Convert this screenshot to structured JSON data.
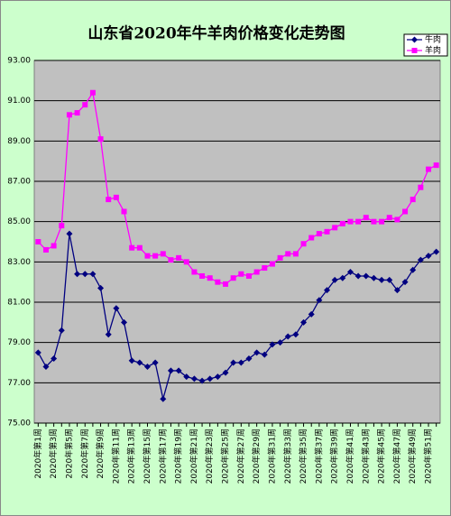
{
  "chart_data": {
    "type": "line",
    "title": "山东省2020年牛羊肉价格变化走势图",
    "categories": [
      "2020年第1周",
      null,
      "2020年第3周",
      null,
      "2020年第5周",
      null,
      "2020年第7周",
      null,
      "2020年第9周",
      null,
      "2020年第11周",
      null,
      "2020年第13周",
      null,
      "2020年第15周",
      null,
      "2020年第17周",
      null,
      "2020年第19周",
      null,
      "2020年第21周",
      null,
      "2020年第23周",
      null,
      "2020年第25周",
      null,
      "2020年第27周",
      null,
      "2020年第29周",
      null,
      "2020年第31周",
      null,
      "2020年第33周",
      null,
      "2020年第35周",
      null,
      "2020年第37周",
      null,
      "2020年第39周",
      null,
      "2020年第41周",
      null,
      "2020年第43周",
      null,
      "2020年第45周",
      null,
      "2020年第47周",
      null,
      "2020年第49周",
      null,
      "2020年第51周",
      null
    ],
    "series": [
      {
        "name": "牛肉",
        "color": "#000080",
        "marker": "diamond",
        "values": [
          78.5,
          77.8,
          78.2,
          79.6,
          84.4,
          82.4,
          82.4,
          82.4,
          81.7,
          79.4,
          80.7,
          80.0,
          78.1,
          78.0,
          77.8,
          78.0,
          76.2,
          77.6,
          77.6,
          77.3,
          77.2,
          77.1,
          77.2,
          77.3,
          77.5,
          78.0,
          78.0,
          78.2,
          78.5,
          78.4,
          78.9,
          79.0,
          79.3,
          79.4,
          80.0,
          80.4,
          81.1,
          81.6,
          82.1,
          82.2,
          82.5,
          82.3,
          82.3,
          82.2,
          82.1,
          82.1,
          81.6,
          82.0,
          82.6,
          83.1,
          83.3,
          83.5
        ]
      },
      {
        "name": "羊肉",
        "color": "#ff00ff",
        "marker": "square",
        "values": [
          84.0,
          83.6,
          83.8,
          84.8,
          90.3,
          90.4,
          90.8,
          91.4,
          89.1,
          86.1,
          86.2,
          85.5,
          83.7,
          83.7,
          83.3,
          83.3,
          83.4,
          83.1,
          83.2,
          83.0,
          82.5,
          82.3,
          82.2,
          82.0,
          81.9,
          82.2,
          82.4,
          82.3,
          82.5,
          82.7,
          82.9,
          83.2,
          83.4,
          83.4,
          83.9,
          84.2,
          84.4,
          84.5,
          84.7,
          84.9,
          85.0,
          85.0,
          85.2,
          85.0,
          85.0,
          85.2,
          85.1,
          85.5,
          86.1,
          86.7,
          87.6,
          87.8
        ]
      }
    ],
    "ylim": [
      75,
      93
    ],
    "yticks": [
      {
        "value": 75,
        "label": "75.00"
      },
      {
        "value": 77,
        "label": "77.00"
      },
      {
        "value": 79,
        "label": "79.00"
      },
      {
        "value": 81,
        "label": "81.00"
      },
      {
        "value": 83,
        "label": "83.00"
      },
      {
        "value": 85,
        "label": "85.00"
      },
      {
        "value": 87,
        "label": "87.00"
      },
      {
        "value": 89,
        "label": "89.00"
      },
      {
        "value": 91,
        "label": "91.00"
      },
      {
        "value": 93,
        "label": "93.00"
      }
    ],
    "grid": true,
    "legend": "top-right"
  }
}
